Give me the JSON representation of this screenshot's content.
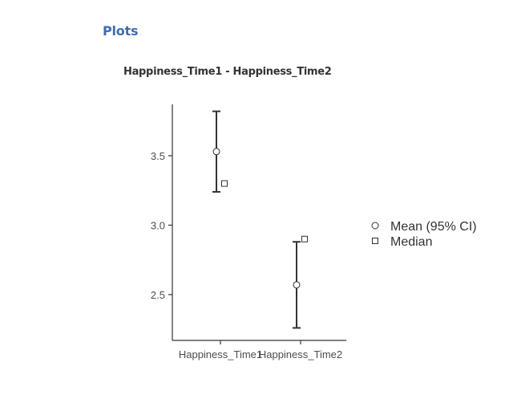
{
  "section": {
    "title": "Plots"
  },
  "plot": {
    "title": "Happiness_Time1 - Happiness_Time2"
  },
  "legend": {
    "items": [
      {
        "label": "Mean (95% CI)",
        "marker": "circle"
      },
      {
        "label": "Median",
        "marker": "square"
      }
    ]
  },
  "chart_data": {
    "type": "scatter",
    "title": "Happiness_Time1 - Happiness_Time2",
    "categories": [
      "Happiness_Time1",
      "Happiness_Time2"
    ],
    "ylim": [
      2.17,
      3.87
    ],
    "yticks": [
      2.5,
      3.0,
      3.5
    ],
    "ytick_labels": [
      "2.5",
      "3.0",
      "3.5"
    ],
    "grid": false,
    "legend_position": "right",
    "series": [
      {
        "name": "Mean (95% CI)",
        "marker": "circle",
        "values": [
          3.53,
          2.57
        ],
        "ci_lower": [
          3.24,
          2.26
        ],
        "ci_upper": [
          3.82,
          2.88
        ]
      },
      {
        "name": "Median",
        "marker": "square",
        "values": [
          3.3,
          2.9
        ]
      }
    ],
    "colors": {
      "axis": "#333333",
      "errorbar": "#333333",
      "marker_fill": "#ffffff",
      "marker_stroke": "#333333"
    }
  }
}
